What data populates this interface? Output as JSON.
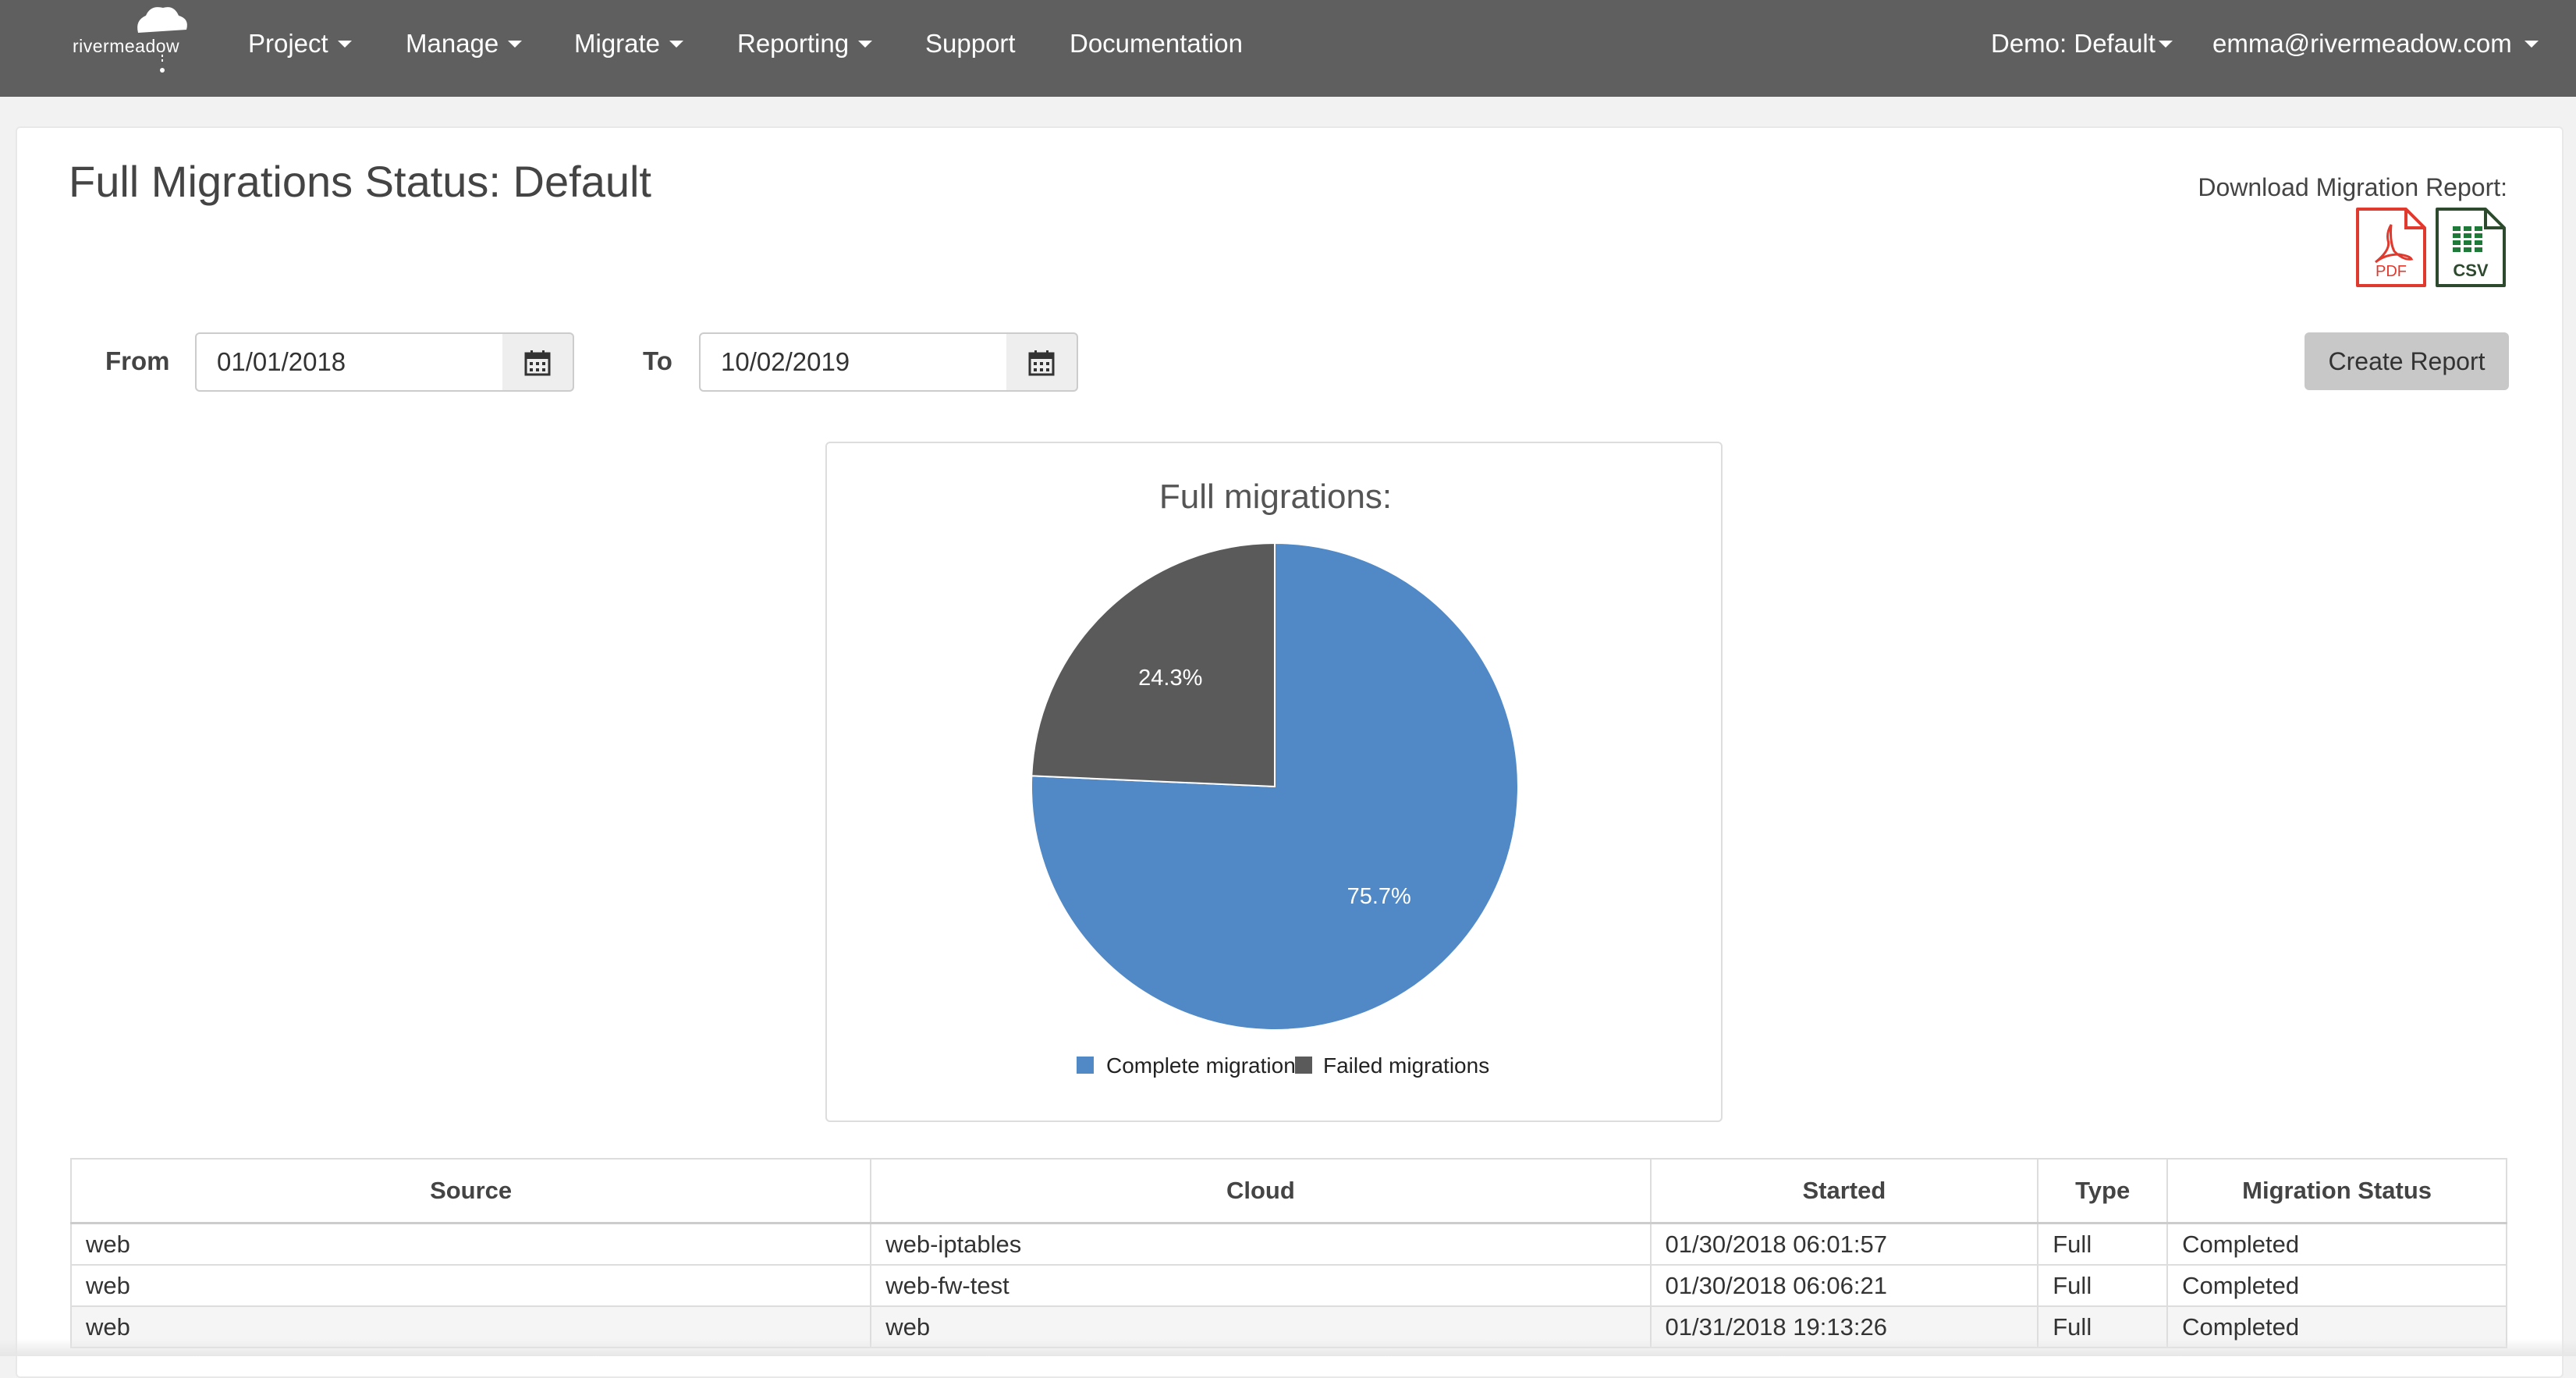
{
  "brand": {
    "logo_text": "rivermeadow"
  },
  "nav": {
    "items": [
      {
        "label": "Project",
        "dropdown": true
      },
      {
        "label": "Manage",
        "dropdown": true
      },
      {
        "label": "Migrate",
        "dropdown": true
      },
      {
        "label": "Reporting",
        "dropdown": true
      },
      {
        "label": "Support",
        "dropdown": false
      },
      {
        "label": "Documentation",
        "dropdown": false
      }
    ],
    "org_selector": "Demo: Default",
    "user_menu": "emma@rivermeadow.com"
  },
  "page": {
    "title": "Full Migrations Status: Default",
    "download_label": "Download Migration Report:",
    "download_icons": [
      {
        "name": "pdf-icon",
        "label": "PDF"
      },
      {
        "name": "csv-icon",
        "label": "CSV"
      }
    ]
  },
  "filters": {
    "from_label": "From",
    "from_value": "01/01/2018",
    "to_label": "To",
    "to_value": "10/02/2019",
    "create_button": "Create Report"
  },
  "chart_data": {
    "type": "pie",
    "title": "Full migrations:",
    "slices": [
      {
        "label": "Complete migrations",
        "value": 75.7,
        "display": "75.7%",
        "color": "#5089c6"
      },
      {
        "label": "Failed migrations",
        "value": 24.3,
        "display": "24.3%",
        "color": "#5a5a5a"
      }
    ],
    "legend": {
      "placement": "bottom",
      "items": [
        "Complete migration",
        "Failed migrations"
      ]
    }
  },
  "table": {
    "columns": [
      "Source",
      "Cloud",
      "Started",
      "Type",
      "Migration Status"
    ],
    "rows": [
      [
        "web",
        "web-iptables",
        "01/30/2018 06:01:57",
        "Full",
        "Completed"
      ],
      [
        "web",
        "web-fw-test",
        "01/30/2018 06:06:21",
        "Full",
        "Completed"
      ],
      [
        "web",
        "web",
        "01/31/2018 19:13:26",
        "Full",
        "Completed"
      ]
    ]
  },
  "colors": {
    "navbar": "#5f5f5f",
    "complete": "#5089c6",
    "failed": "#5a5a5a",
    "pdf": "#e03a2f",
    "csv": "#1f7a3a"
  }
}
